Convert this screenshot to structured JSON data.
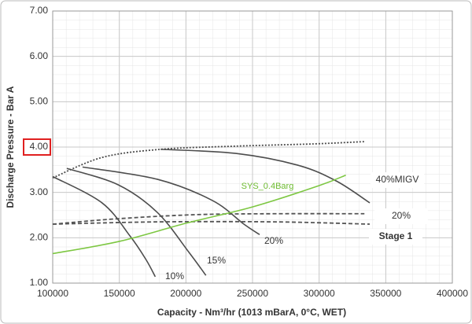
{
  "chart_data": {
    "type": "line",
    "xlabel": "Capacity - Nm³/hr (1013 mBarA, 0°C, WET)",
    "ylabel": "Discharge Pressure - Bar A",
    "xlim": [
      100000,
      400000
    ],
    "xticks": [
      100000,
      150000,
      200000,
      250000,
      300000,
      350000,
      400000
    ],
    "ylim": [
      1,
      7
    ],
    "yticks": [
      {
        "value": 1,
        "label": "1.00"
      },
      {
        "value": 2,
        "label": "2.00"
      },
      {
        "value": 3,
        "label": "3.00"
      },
      {
        "value": 4,
        "label": "4.00"
      },
      {
        "value": 5,
        "label": "5.00"
      },
      {
        "value": 6,
        "label": "6.00"
      },
      {
        "value": 7,
        "label": "7.00"
      }
    ],
    "grid": true,
    "series": [
      {
        "name": "10%",
        "color": "#4d4d4d",
        "dash": "solid",
        "x": [
          100000,
          137000,
          158000,
          170000,
          177000
        ],
        "values": [
          3.35,
          2.77,
          2.04,
          1.52,
          1.14
        ]
      },
      {
        "name": "15%",
        "color": "#4d4d4d",
        "dash": "solid",
        "x": [
          110600,
          149000,
          178500,
          202000,
          215000
        ],
        "values": [
          3.53,
          3.17,
          2.56,
          1.69,
          1.17
        ]
      },
      {
        "name": "20%",
        "color": "#4d4d4d",
        "dash": "solid",
        "x": [
          122400,
          178500,
          220000,
          243500,
          255300
        ],
        "values": [
          3.56,
          3.29,
          2.82,
          2.3,
          2.07
        ]
      },
      {
        "name": "40%MIGV",
        "color": "#4d4d4d",
        "dash": "solid",
        "x": [
          181000,
          237500,
          284000,
          313000,
          338000
        ],
        "values": [
          3.95,
          3.86,
          3.6,
          3.25,
          2.77
        ]
      },
      {
        "color": "#4d4d4d",
        "dash": "dotted",
        "x": [
          100000,
          137000,
          181000,
          237000,
          296000,
          334000
        ],
        "values": [
          3.32,
          3.77,
          3.95,
          4.02,
          4.07,
          4.12
        ]
      },
      {
        "name": "20%",
        "color": "#555555",
        "dash": "dashed",
        "x": [
          100000,
          149000,
          208000,
          267000,
          334000
        ],
        "values": [
          2.3,
          2.42,
          2.51,
          2.53,
          2.53
        ]
      },
      {
        "name": "Stage 1",
        "color": "#555555",
        "dash": "dashed",
        "x": [
          100000,
          178500,
          267000,
          338000
        ],
        "values": [
          2.3,
          2.35,
          2.35,
          2.3
        ]
      },
      {
        "name": "SYS_0.4Barg",
        "color": "#7dc742",
        "dash": "solid",
        "x": [
          100000,
          150000,
          200000,
          250000,
          300000,
          320000
        ],
        "values": [
          1.65,
          1.92,
          2.32,
          2.68,
          3.15,
          3.38
        ]
      }
    ]
  }
}
